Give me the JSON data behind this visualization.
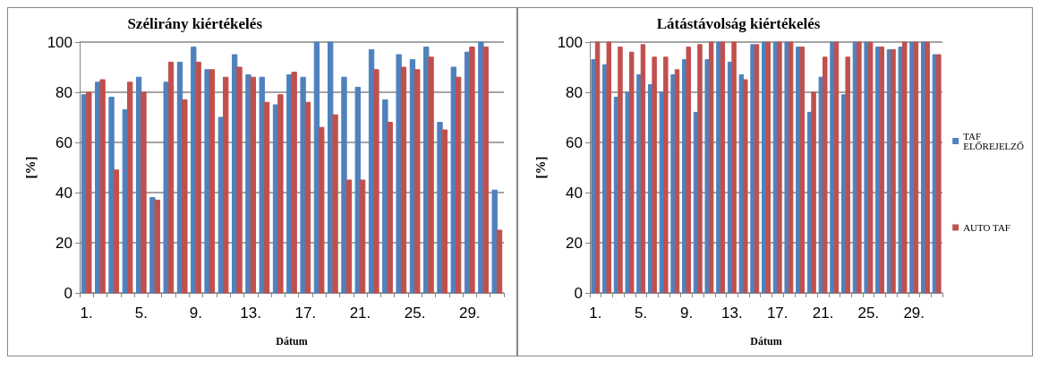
{
  "chart_data": [
    {
      "type": "bar",
      "title": "Szélirány kiértékelés",
      "xlabel": "Dátum",
      "ylabel": "[%]",
      "categories": [
        "1.",
        null,
        null,
        null,
        "5.",
        null,
        null,
        null,
        "9.",
        null,
        null,
        null,
        "13.",
        null,
        null,
        null,
        "17.",
        null,
        null,
        null,
        "21.",
        null,
        null,
        null,
        "25.",
        null,
        null,
        null,
        "29.",
        null,
        null
      ],
      "ylim": [
        0,
        100
      ],
      "yticks": [
        0,
        20,
        40,
        60,
        80,
        100
      ],
      "grid": "y",
      "legend": false,
      "series": [
        {
          "color": "#4f81bd",
          "values": [
            79,
            84,
            78,
            73,
            86,
            38,
            84,
            92,
            98,
            89,
            70,
            95,
            87,
            86,
            75,
            87,
            86,
            100,
            100,
            86,
            82,
            97,
            77,
            95,
            93,
            98,
            68,
            90,
            96,
            100,
            41
          ]
        },
        {
          "color": "#c0504d",
          "values": [
            80,
            85,
            49,
            84,
            80,
            37,
            92,
            77,
            92,
            89,
            86,
            90,
            86,
            76,
            79,
            88,
            76,
            66,
            71,
            45,
            45,
            89,
            68,
            90,
            89,
            94,
            65,
            86,
            98,
            98,
            25
          ]
        }
      ]
    },
    {
      "type": "bar",
      "title": "Látástávolság kiértékelés",
      "xlabel": "Dátum",
      "ylabel": "[%]",
      "categories": [
        "1.",
        null,
        null,
        null,
        "5.",
        null,
        null,
        null,
        "9.",
        null,
        null,
        null,
        "13.",
        null,
        null,
        null,
        "17.",
        null,
        null,
        null,
        "21.",
        null,
        null,
        null,
        "25.",
        null,
        null,
        null,
        "29.",
        null,
        null
      ],
      "ylim": [
        0,
        100
      ],
      "yticks": [
        0,
        20,
        40,
        60,
        80,
        100
      ],
      "grid": "y",
      "legend": "right",
      "series": [
        {
          "name": "TAF ELŐREJELZŐ",
          "color": "#4f81bd",
          "values": [
            93,
            91,
            78,
            80,
            87,
            83,
            80,
            87,
            93,
            72,
            93,
            100,
            92,
            87,
            99,
            100,
            100,
            100,
            98,
            72,
            86,
            100,
            79,
            100,
            100,
            98,
            97,
            98,
            100,
            100,
            95
          ]
        },
        {
          "name": "AUTO TAF",
          "color": "#c0504d",
          "values": [
            100,
            100,
            98,
            96,
            99,
            94,
            94,
            89,
            98,
            99,
            100,
            100,
            100,
            85,
            99,
            100,
            100,
            100,
            98,
            80,
            94,
            100,
            94,
            100,
            100,
            98,
            97,
            100,
            100,
            100,
            95
          ]
        }
      ]
    }
  ]
}
